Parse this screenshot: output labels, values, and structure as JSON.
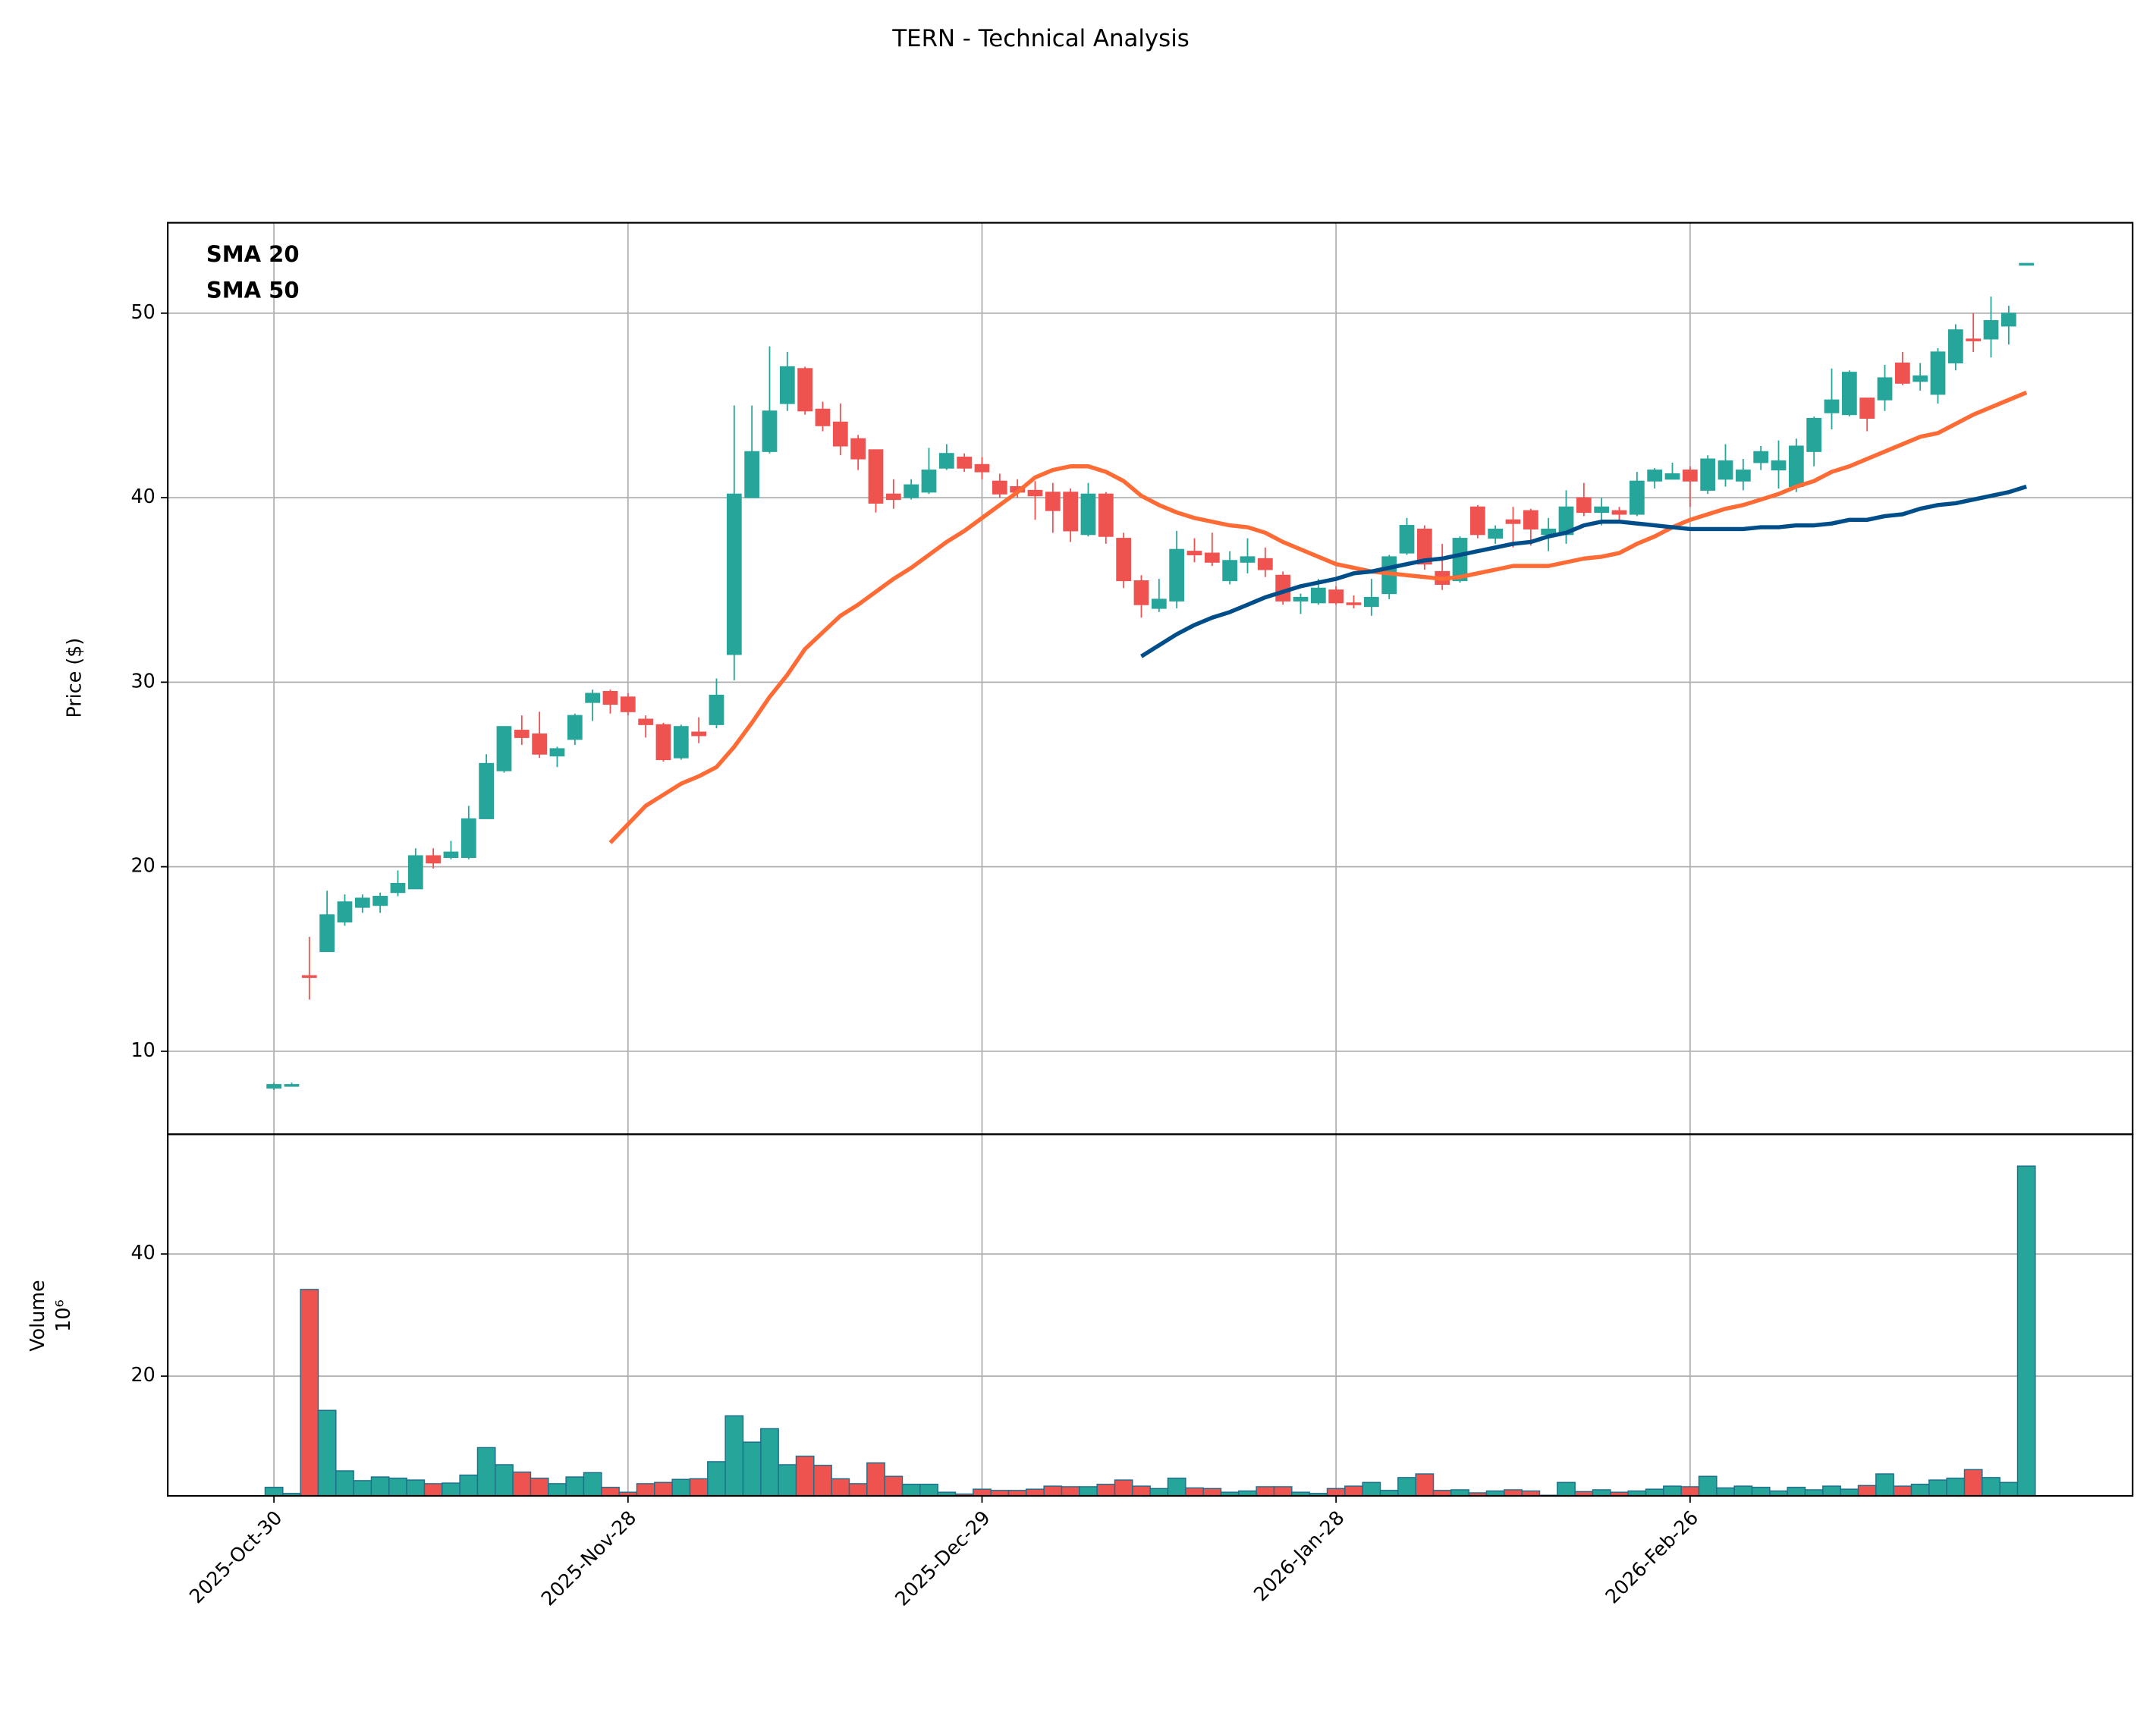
{
  "chart_data": {
    "type": "candlestick",
    "title": "TERN - Technical Analysis",
    "ylabel": "Price ($)",
    "categories": [
      "2025-Oct-30",
      null,
      null,
      null,
      null,
      null,
      null,
      null,
      null,
      null,
      null,
      null,
      null,
      null,
      null,
      null,
      null,
      null,
      null,
      null,
      "2025-Nov-28",
      null,
      null,
      null,
      null,
      null,
      null,
      null,
      null,
      null,
      null,
      null,
      null,
      null,
      null,
      null,
      null,
      null,
      null,
      null,
      "2025-Dec-29",
      null,
      null,
      null,
      null,
      null,
      null,
      null,
      null,
      null,
      null,
      null,
      null,
      null,
      null,
      null,
      null,
      null,
      null,
      null,
      "2026-Jan-28",
      null,
      null,
      null,
      null,
      null,
      null,
      null,
      null,
      null,
      null,
      null,
      null,
      null,
      null,
      null,
      null,
      null,
      null,
      null,
      "2026-Feb-26",
      null,
      null,
      null,
      null,
      null,
      null,
      null,
      null,
      null,
      null,
      null,
      null,
      null,
      null,
      null,
      null,
      null,
      null,
      null
    ],
    "xlim": [
      -6,
      105
    ],
    "open": [
      8.0,
      8.1,
      14.1,
      15.4,
      17.0,
      17.8,
      17.9,
      18.6,
      18.8,
      20.6,
      20.5,
      20.5,
      22.6,
      25.2,
      27.4,
      27.2,
      26.0,
      26.9,
      28.9,
      29.5,
      29.2,
      28.0,
      27.7,
      25.9,
      27.3,
      27.7,
      31.5,
      40.0,
      42.5,
      45.1,
      47.0,
      44.8,
      44.1,
      43.2,
      42.6,
      40.2,
      40.0,
      40.3,
      41.6,
      42.2,
      41.8,
      40.9,
      40.6,
      40.4,
      40.3,
      40.3,
      38.0,
      40.2,
      37.8,
      35.5,
      34.0,
      34.4,
      37.1,
      37.0,
      35.5,
      36.5,
      36.7,
      35.8,
      34.4,
      34.3,
      35.0,
      34.3,
      34.1,
      34.8,
      37.0,
      38.3,
      36.0,
      35.5,
      39.5,
      37.8,
      38.8,
      39.3,
      38.0,
      38.0,
      40.0,
      39.2,
      39.3,
      39.1,
      40.9,
      41.0,
      41.5,
      40.4,
      41.0,
      40.9,
      41.9,
      41.5,
      40.6,
      42.5,
      44.6,
      44.5,
      45.4,
      45.3,
      47.3,
      46.3,
      45.6,
      47.3,
      48.6,
      48.6,
      49.3,
      52.6
    ],
    "high": [
      8.3,
      8.3,
      16.2,
      18.7,
      18.5,
      18.5,
      18.6,
      19.8,
      21.0,
      21.0,
      21.4,
      23.3,
      26.1,
      27.6,
      28.2,
      28.4,
      26.5,
      28.3,
      29.6,
      29.6,
      29.4,
      28.2,
      27.8,
      27.7,
      28.1,
      30.2,
      45.0,
      45.0,
      48.2,
      47.9,
      47.1,
      45.2,
      45.1,
      43.4,
      42.6,
      41.0,
      41.0,
      42.7,
      42.9,
      42.4,
      42.2,
      41.3,
      41.0,
      40.9,
      40.8,
      40.5,
      40.8,
      40.3,
      38.1,
      35.8,
      35.6,
      38.2,
      37.8,
      38.1,
      37.1,
      37.8,
      37.3,
      36.0,
      34.8,
      35.6,
      35.2,
      34.7,
      35.6,
      36.9,
      38.9,
      38.5,
      37.5,
      37.9,
      39.6,
      38.5,
      39.5,
      39.4,
      38.9,
      40.4,
      40.8,
      40.0,
      39.5,
      41.4,
      41.6,
      41.9,
      41.7,
      42.3,
      42.9,
      42.1,
      42.8,
      43.1,
      43.2,
      44.4,
      47.0,
      46.9,
      45.4,
      47.2,
      47.9,
      47.3,
      48.1,
      49.4,
      50.0,
      50.9,
      50.4,
      52.7
    ],
    "low": [
      7.9,
      8.1,
      12.8,
      15.4,
      16.8,
      17.5,
      17.5,
      18.4,
      18.8,
      19.9,
      20.4,
      20.4,
      22.6,
      25.1,
      26.6,
      25.9,
      25.4,
      26.6,
      27.9,
      28.3,
      28.2,
      27.0,
      25.7,
      25.8,
      26.7,
      27.5,
      30.1,
      40.0,
      42.4,
      44.7,
      44.5,
      43.6,
      42.3,
      41.5,
      39.2,
      39.4,
      39.9,
      40.2,
      41.5,
      41.4,
      41.0,
      40.0,
      40.0,
      38.8,
      38.1,
      37.6,
      37.9,
      37.5,
      35.1,
      33.5,
      33.8,
      34.0,
      36.5,
      36.3,
      35.3,
      35.9,
      35.7,
      34.2,
      33.7,
      34.2,
      34.2,
      34.0,
      33.6,
      34.5,
      36.9,
      36.1,
      35.0,
      35.4,
      37.8,
      37.5,
      37.3,
      37.4,
      37.1,
      37.5,
      39.0,
      38.5,
      38.6,
      39.0,
      40.5,
      41.0,
      39.5,
      40.2,
      40.6,
      40.4,
      41.5,
      40.5,
      40.3,
      41.7,
      43.7,
      44.4,
      43.6,
      44.7,
      46.1,
      45.8,
      45.1,
      46.9,
      47.9,
      47.6,
      48.3,
      52.6
    ],
    "close": [
      8.2,
      8.2,
      14.0,
      17.4,
      18.1,
      18.3,
      18.4,
      19.1,
      20.6,
      20.2,
      20.8,
      22.6,
      25.6,
      27.6,
      27.0,
      26.1,
      26.4,
      28.2,
      29.4,
      28.8,
      28.4,
      27.7,
      25.8,
      27.6,
      27.1,
      29.3,
      40.2,
      42.5,
      44.7,
      47.1,
      44.7,
      43.9,
      42.8,
      42.1,
      39.7,
      39.9,
      40.7,
      41.5,
      42.4,
      41.6,
      41.4,
      40.2,
      40.3,
      40.1,
      39.3,
      38.2,
      40.2,
      37.9,
      35.5,
      34.2,
      34.5,
      37.2,
      36.9,
      36.5,
      36.6,
      36.8,
      36.1,
      34.4,
      34.6,
      35.1,
      34.3,
      34.2,
      34.6,
      36.8,
      38.5,
      36.4,
      35.3,
      37.8,
      38.0,
      38.3,
      38.6,
      38.3,
      38.3,
      39.5,
      39.2,
      39.5,
      39.1,
      40.9,
      41.5,
      41.3,
      40.9,
      42.1,
      42.0,
      41.5,
      42.5,
      42.0,
      42.8,
      44.3,
      45.3,
      46.8,
      44.3,
      46.5,
      46.2,
      46.6,
      47.9,
      49.1,
      48.5,
      49.6,
      50.0,
      52.7
    ],
    "up_color": "#26a69a",
    "down_color": "#ef5350",
    "series": [
      {
        "name": "SMA 20",
        "color": "#ff6b35",
        "values": [
          null,
          null,
          null,
          null,
          null,
          null,
          null,
          null,
          null,
          null,
          null,
          null,
          null,
          null,
          null,
          null,
          null,
          null,
          null,
          21.3,
          22.3,
          23.3,
          23.9,
          24.5,
          24.9,
          25.4,
          26.5,
          27.8,
          29.2,
          30.4,
          31.8,
          32.7,
          33.6,
          34.2,
          34.9,
          35.6,
          36.2,
          36.9,
          37.6,
          38.2,
          38.9,
          39.6,
          40.3,
          41.1,
          41.5,
          41.7,
          41.7,
          41.4,
          40.9,
          40.1,
          39.6,
          39.2,
          38.9,
          38.7,
          38.5,
          38.4,
          38.1,
          37.6,
          37.2,
          36.8,
          36.4,
          36.2,
          36.0,
          35.9,
          35.8,
          35.7,
          35.6,
          35.7,
          35.9,
          36.1,
          36.3,
          36.3,
          36.3,
          36.5,
          36.7,
          36.8,
          37.0,
          37.5,
          37.9,
          38.4,
          38.8,
          39.1,
          39.4,
          39.6,
          39.9,
          40.2,
          40.6,
          40.9,
          41.4,
          41.7,
          42.1,
          42.5,
          42.9,
          43.3,
          43.5,
          44.0,
          44.5,
          44.9,
          45.3,
          45.7
        ]
      },
      {
        "name": "SMA 50",
        "color": "#004e89",
        "values": [
          null,
          null,
          null,
          null,
          null,
          null,
          null,
          null,
          null,
          null,
          null,
          null,
          null,
          null,
          null,
          null,
          null,
          null,
          null,
          null,
          null,
          null,
          null,
          null,
          null,
          null,
          null,
          null,
          null,
          null,
          null,
          null,
          null,
          null,
          null,
          null,
          null,
          null,
          null,
          null,
          null,
          null,
          null,
          null,
          null,
          null,
          null,
          null,
          null,
          31.4,
          32.0,
          32.6,
          33.1,
          33.5,
          33.8,
          34.2,
          34.6,
          34.9,
          35.2,
          35.4,
          35.6,
          35.9,
          36.0,
          36.2,
          36.4,
          36.6,
          36.7,
          36.9,
          37.1,
          37.3,
          37.5,
          37.6,
          37.9,
          38.1,
          38.5,
          38.7,
          38.7,
          38.6,
          38.5,
          38.4,
          38.3,
          38.3,
          38.3,
          38.3,
          38.4,
          38.4,
          38.5,
          38.5,
          38.6,
          38.8,
          38.8,
          39.0,
          39.1,
          39.4,
          39.6,
          39.7,
          39.9,
          40.1,
          40.3,
          40.6
        ]
      }
    ],
    "ylim": [
      5.5,
      54.9
    ],
    "yticks": [
      10,
      20,
      30,
      40,
      50
    ],
    "grid": true,
    "legend": "upper left",
    "volume": {
      "ylabel": "Volume",
      "offset_label": "10⁶",
      "values": [
        1.8,
        0.8,
        34.2,
        14.4,
        4.5,
        2.9,
        3.5,
        3.3,
        3.0,
        2.4,
        2.5,
        3.8,
        8.3,
        5.5,
        4.3,
        3.3,
        2.4,
        3.5,
        4.2,
        1.8,
        1.0,
        2.4,
        2.6,
        3.1,
        3.2,
        6.0,
        13.5,
        9.2,
        11.4,
        5.5,
        6.9,
        5.4,
        3.2,
        2.4,
        5.8,
        3.6,
        2.3,
        2.3,
        1.0,
        0.7,
        1.5,
        1.3,
        1.3,
        1.5,
        2.0,
        1.9,
        1.9,
        2.3,
        3.0,
        2.0,
        1.6,
        3.3,
        1.7,
        1.6,
        1.0,
        1.2,
        1.9,
        1.9,
        1.0,
        0.8,
        1.6,
        2.0,
        2.6,
        1.3,
        3.4,
        4.0,
        1.3,
        1.4,
        0.9,
        1.2,
        1.4,
        1.2,
        0.5,
        2.6,
        1.1,
        1.4,
        1.0,
        1.2,
        1.5,
        2.0,
        1.9,
        3.6,
        1.7,
        2.0,
        1.8,
        1.2,
        1.8,
        1.4,
        2.0,
        1.5,
        2.1,
        4.0,
        2.0,
        2.3,
        3.0,
        3.3,
        4.7,
        3.4,
        2.6,
        54.4
      ],
      "edge_color": "#1f6f8b",
      "ylim": [
        0.4,
        59.6
      ],
      "yticks": [
        20,
        40
      ]
    }
  }
}
